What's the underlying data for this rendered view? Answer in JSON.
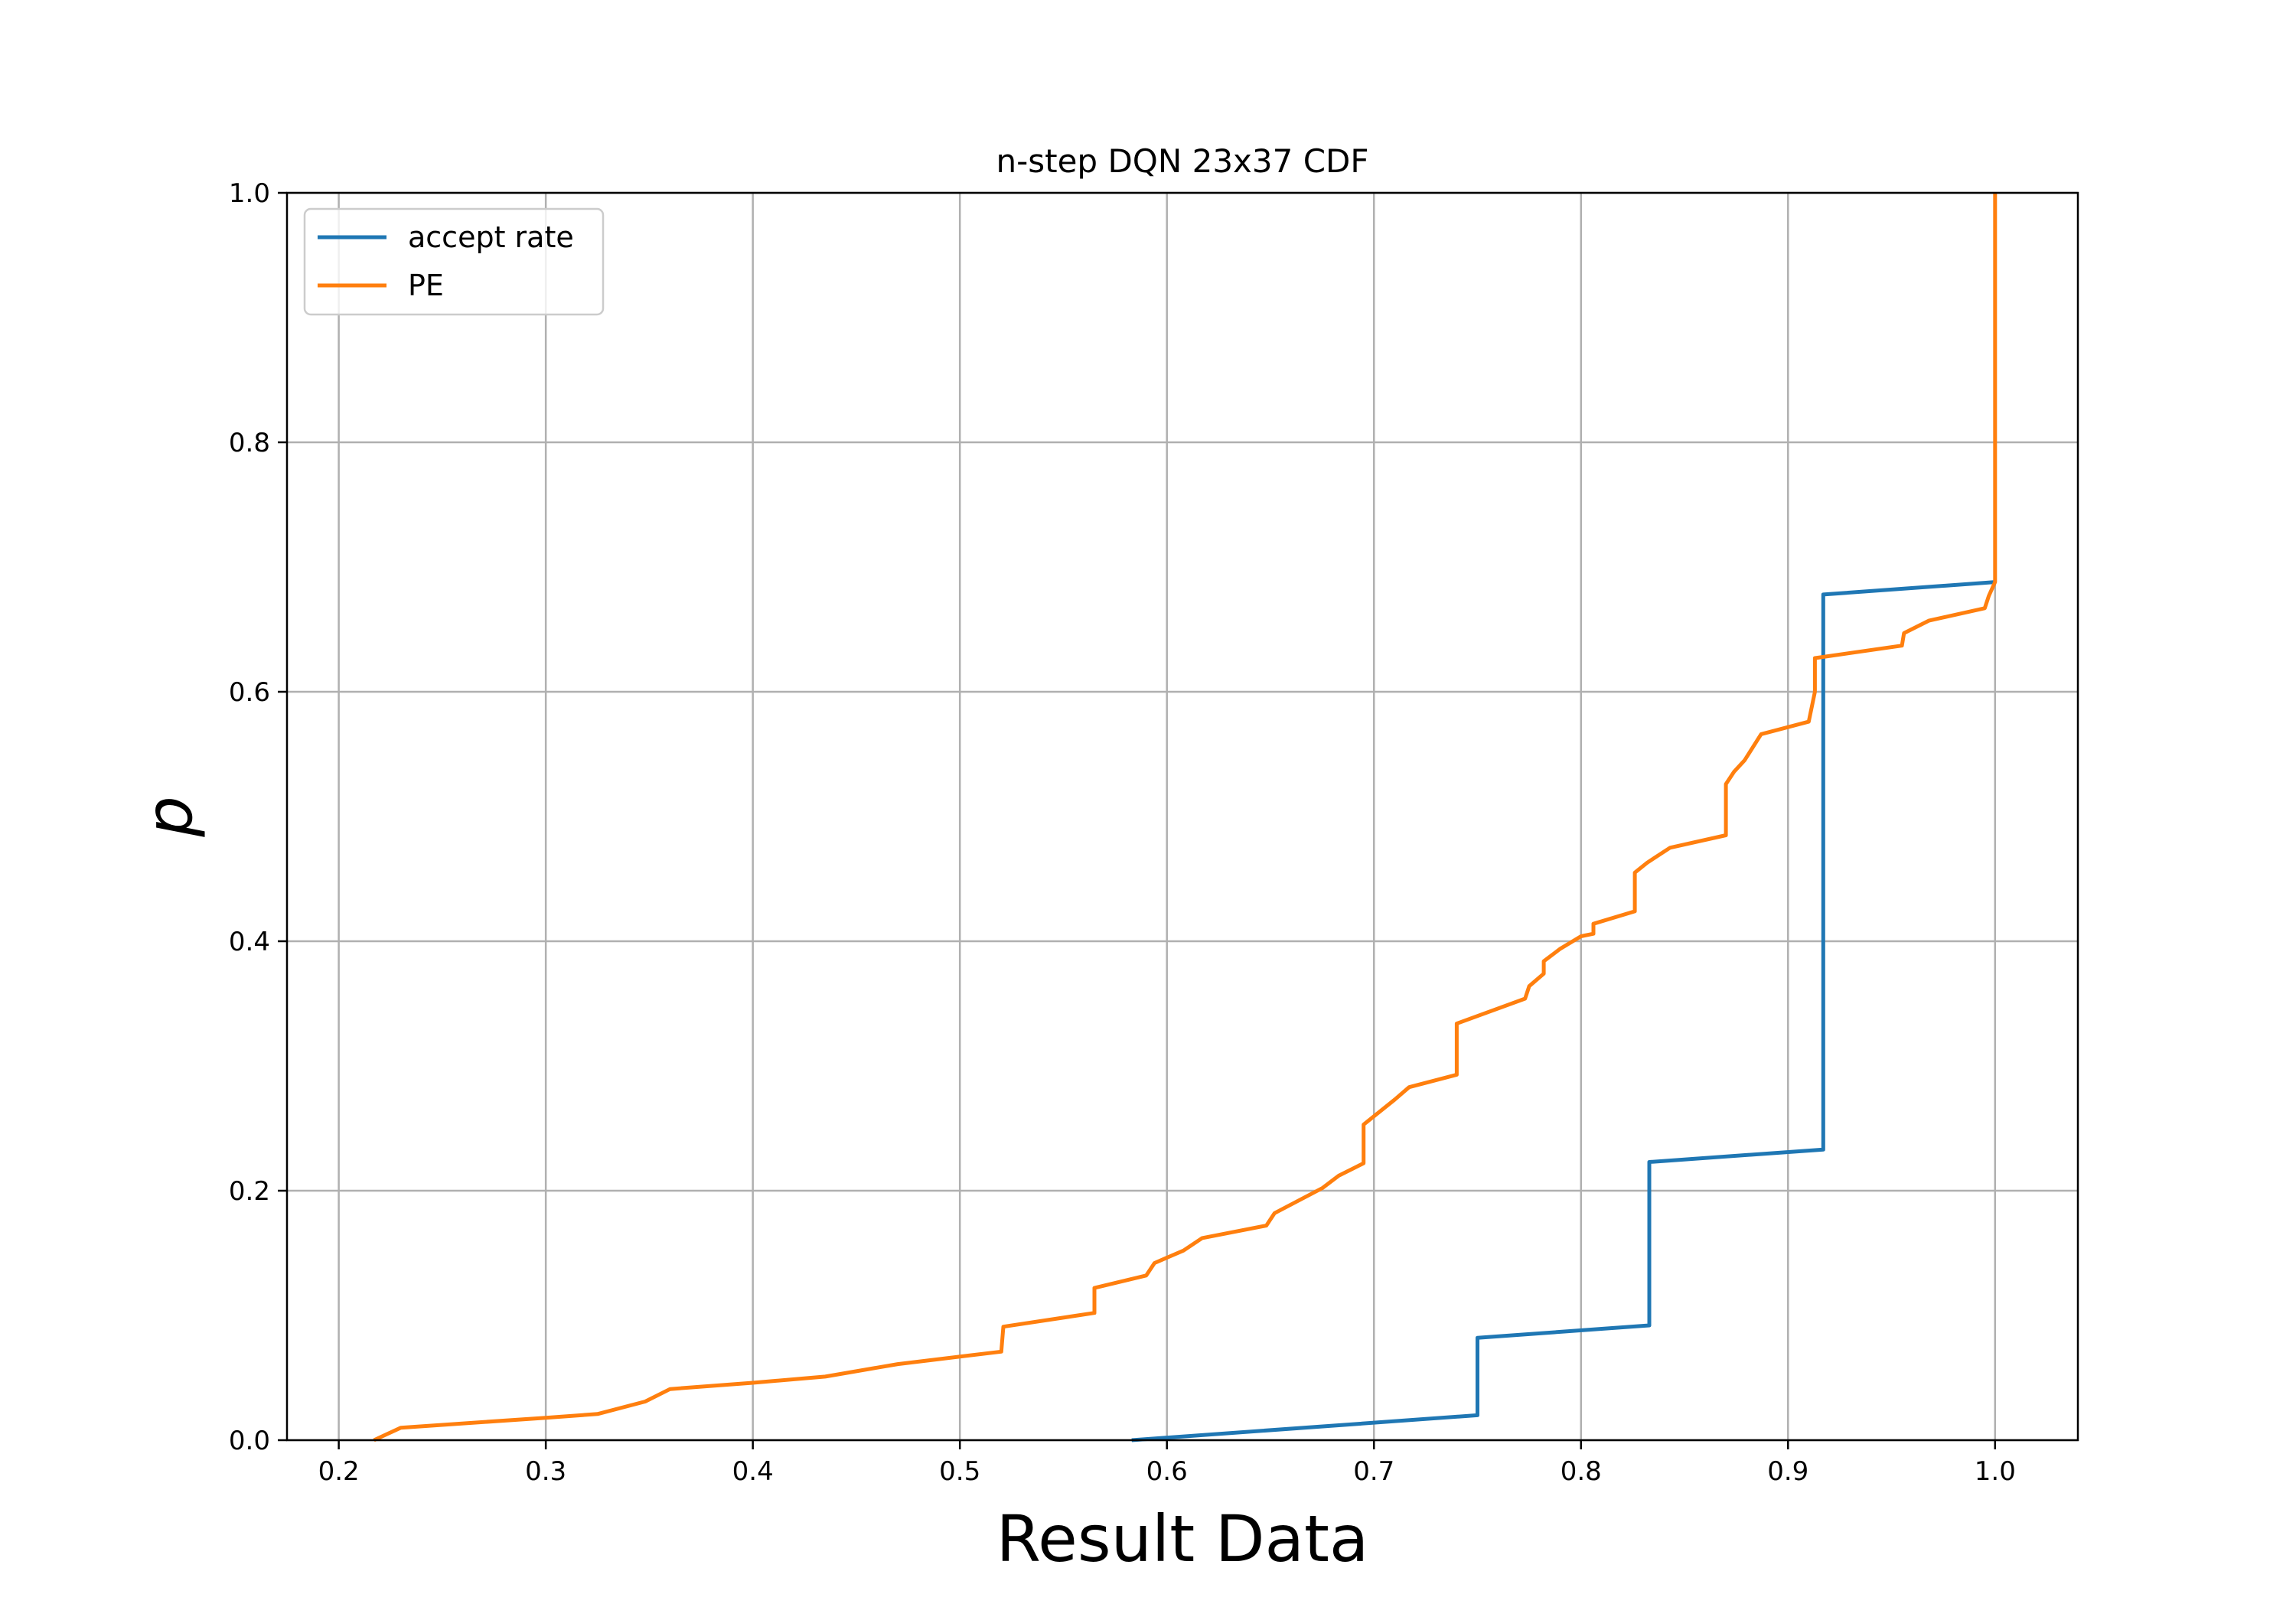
{
  "chart_data": {
    "type": "line",
    "title": "n-step DQN 23x37 CDF",
    "xlabel": "Result Data",
    "ylabel": "p",
    "xlim": [
      0.175,
      1.04
    ],
    "ylim": [
      0.0,
      1.0
    ],
    "xticks": [
      "0.2",
      "0.3",
      "0.4",
      "0.5",
      "0.6",
      "0.7",
      "0.8",
      "0.9",
      "1.0"
    ],
    "yticks": [
      "0.0",
      "0.2",
      "0.4",
      "0.6",
      "0.8",
      "1.0"
    ],
    "grid": true,
    "legend_position": "top-left",
    "series": [
      {
        "name": "accept rate",
        "color": "#1f77b4",
        "points": [
          [
            0.583,
            0.0
          ],
          [
            0.75,
            0.02
          ],
          [
            0.75,
            0.082
          ],
          [
            0.833,
            0.092
          ],
          [
            0.833,
            0.223
          ],
          [
            0.917,
            0.233
          ],
          [
            0.917,
            0.678
          ],
          [
            1.0,
            0.688
          ]
        ]
      },
      {
        "name": "PE",
        "color": "#ff7f0e",
        "points": [
          [
            0.217,
            0.0
          ],
          [
            0.23,
            0.01
          ],
          [
            0.3,
            0.018
          ],
          [
            0.325,
            0.021
          ],
          [
            0.348,
            0.031
          ],
          [
            0.36,
            0.041
          ],
          [
            0.4,
            0.046
          ],
          [
            0.435,
            0.051
          ],
          [
            0.47,
            0.061
          ],
          [
            0.52,
            0.071
          ],
          [
            0.521,
            0.091
          ],
          [
            0.565,
            0.102
          ],
          [
            0.565,
            0.122
          ],
          [
            0.59,
            0.132
          ],
          [
            0.594,
            0.142
          ],
          [
            0.608,
            0.152
          ],
          [
            0.617,
            0.162
          ],
          [
            0.648,
            0.172
          ],
          [
            0.652,
            0.182
          ],
          [
            0.675,
            0.202
          ],
          [
            0.683,
            0.212
          ],
          [
            0.695,
            0.222
          ],
          [
            0.695,
            0.253
          ],
          [
            0.71,
            0.273
          ],
          [
            0.717,
            0.283
          ],
          [
            0.74,
            0.293
          ],
          [
            0.74,
            0.334
          ],
          [
            0.773,
            0.354
          ],
          [
            0.775,
            0.364
          ],
          [
            0.782,
            0.374
          ],
          [
            0.782,
            0.384
          ],
          [
            0.79,
            0.394
          ],
          [
            0.8,
            0.404
          ],
          [
            0.806,
            0.406
          ],
          [
            0.806,
            0.414
          ],
          [
            0.826,
            0.424
          ],
          [
            0.826,
            0.455
          ],
          [
            0.832,
            0.463
          ],
          [
            0.843,
            0.475
          ],
          [
            0.87,
            0.485
          ],
          [
            0.87,
            0.526
          ],
          [
            0.874,
            0.536
          ],
          [
            0.879,
            0.545
          ],
          [
            0.887,
            0.566
          ],
          [
            0.91,
            0.576
          ],
          [
            0.913,
            0.6
          ],
          [
            0.913,
            0.627
          ],
          [
            0.955,
            0.637
          ],
          [
            0.956,
            0.647
          ],
          [
            0.968,
            0.657
          ],
          [
            0.995,
            0.667
          ],
          [
            0.997,
            0.677
          ],
          [
            1.0,
            0.688
          ],
          [
            1.0,
            1.0
          ]
        ]
      }
    ]
  }
}
